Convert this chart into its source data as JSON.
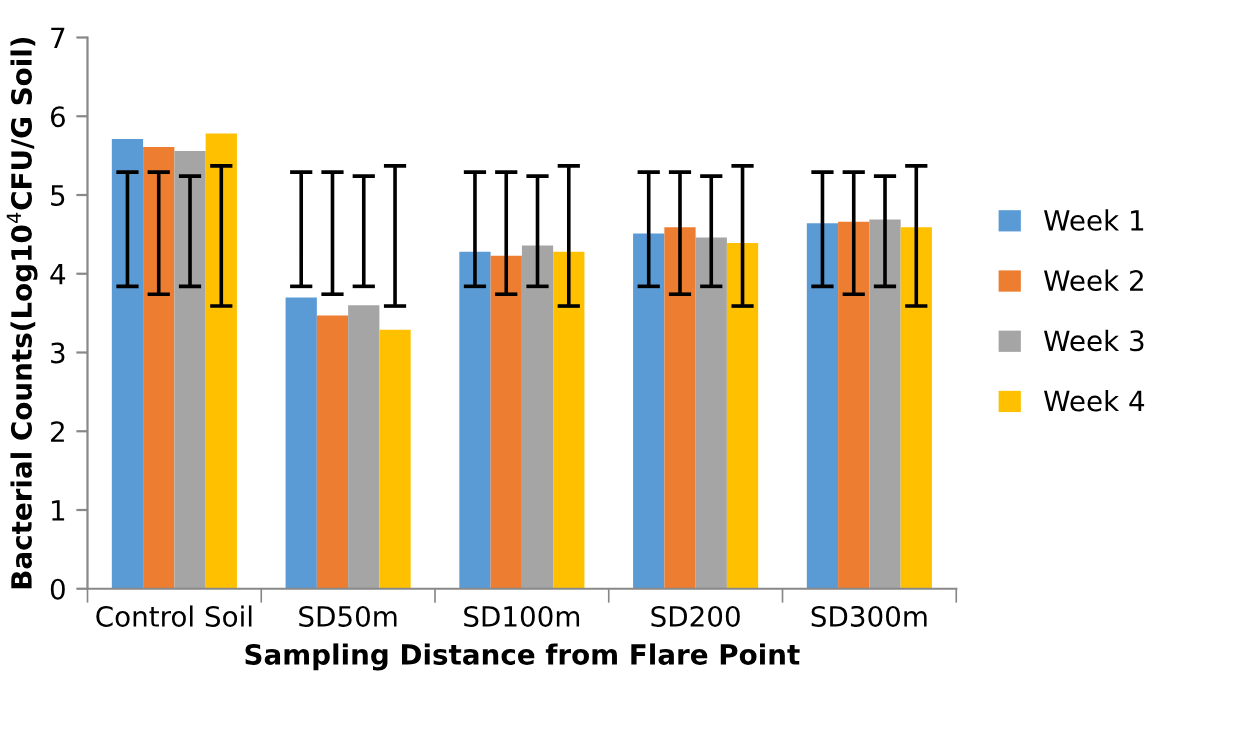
{
  "chart_data": {
    "type": "bar",
    "xlabel": "Sampling Distance from Flare Point",
    "ylabel": "Bacterial Counts(Log10$^{4}$CFU/G Soil)",
    "categories": [
      "Control Soil",
      "SD50m",
      "SD100m",
      "SD200",
      "SD300m"
    ],
    "series": [
      {
        "name": "Week 1",
        "color": "#5b9bd5",
        "values": [
          5.71,
          3.7,
          4.28,
          4.51,
          4.64
        ],
        "errors": [
          [
            3.84,
            5.29
          ],
          [
            3.84,
            5.29
          ],
          [
            3.84,
            5.29
          ],
          [
            3.84,
            5.29
          ],
          [
            3.84,
            5.29
          ]
        ]
      },
      {
        "name": "Week 2",
        "color": "#ed7d31",
        "values": [
          5.61,
          3.47,
          4.23,
          4.59,
          4.66
        ],
        "errors": [
          [
            3.74,
            5.29
          ],
          [
            3.74,
            5.29
          ],
          [
            3.74,
            5.29
          ],
          [
            3.74,
            5.29
          ],
          [
            3.74,
            5.29
          ]
        ]
      },
      {
        "name": "Week 3",
        "color": "#a5a5a5",
        "values": [
          5.56,
          3.6,
          4.36,
          4.46,
          4.69
        ],
        "errors": [
          [
            3.84,
            5.24
          ],
          [
            3.84,
            5.24
          ],
          [
            3.84,
            5.24
          ],
          [
            3.84,
            5.24
          ],
          [
            3.84,
            5.24
          ]
        ]
      },
      {
        "name": "Week 4",
        "color": "#ffc000",
        "values": [
          5.78,
          3.29,
          4.28,
          4.39,
          4.59
        ],
        "errors": [
          [
            3.59,
            5.37
          ],
          [
            3.59,
            5.37
          ],
          [
            3.59,
            5.37
          ],
          [
            3.59,
            5.37
          ],
          [
            3.59,
            5.37
          ]
        ]
      }
    ],
    "ylim": [
      0,
      7
    ],
    "yticks": [
      0,
      1,
      2,
      3,
      4,
      5,
      6,
      7
    ],
    "grid": false,
    "legend": "right"
  }
}
